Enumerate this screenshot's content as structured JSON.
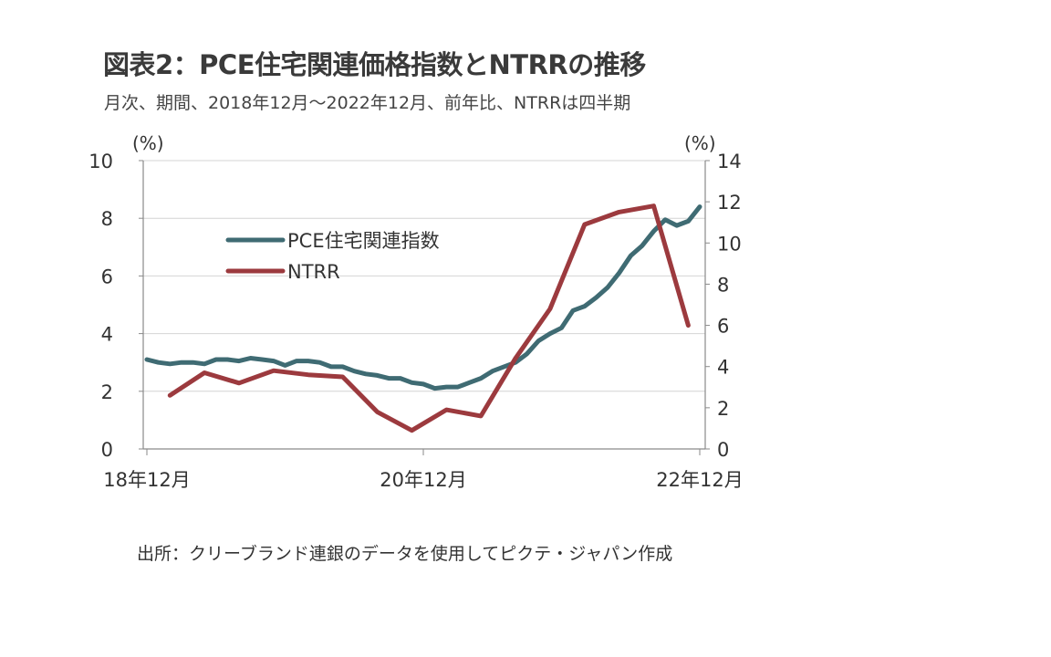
{
  "title": "図表2：PCE住宅関連価格指数とNTRRの推移",
  "subtitle": "月次、期間、2018年12月～2022年12月、前年比、NTRRは四半期",
  "source": "出所：クリーブランド連銀のデータを使用してピクテ・ジャパン作成",
  "chart_data": {
    "type": "line",
    "left_axis": {
      "unit": "(%)",
      "ylim": [
        0,
        10
      ],
      "ticks": [
        "0",
        "2",
        "4",
        "6",
        "8",
        "10"
      ]
    },
    "right_axis": {
      "unit": "(%)",
      "ylim": [
        0,
        14
      ],
      "ticks": [
        "0",
        "2",
        "4",
        "6",
        "8",
        "10",
        "12",
        "14"
      ]
    },
    "x_tick_labels": [
      "18年12月",
      "20年12月",
      "22年12月"
    ],
    "grid": "horizontal",
    "legend_position": "upper-left inside plot",
    "series": [
      {
        "name": "PCE住宅関連指数",
        "axis": "left",
        "color": "#3f6b73",
        "x": [
          "2018-12",
          "2019-01",
          "2019-02",
          "2019-03",
          "2019-04",
          "2019-05",
          "2019-06",
          "2019-07",
          "2019-08",
          "2019-09",
          "2019-10",
          "2019-11",
          "2019-12",
          "2020-01",
          "2020-02",
          "2020-03",
          "2020-04",
          "2020-05",
          "2020-06",
          "2020-07",
          "2020-08",
          "2020-09",
          "2020-10",
          "2020-11",
          "2020-12",
          "2021-01",
          "2021-02",
          "2021-03",
          "2021-04",
          "2021-05",
          "2021-06",
          "2021-07",
          "2021-08",
          "2021-09",
          "2021-10",
          "2021-11",
          "2021-12",
          "2022-01",
          "2022-02",
          "2022-03",
          "2022-04",
          "2022-05",
          "2022-06",
          "2022-07",
          "2022-08",
          "2022-09",
          "2022-10",
          "2022-11",
          "2022-12"
        ],
        "values": [
          3.1,
          3.0,
          2.95,
          3.0,
          3.0,
          2.95,
          3.1,
          3.1,
          3.05,
          3.15,
          3.1,
          3.05,
          2.9,
          3.05,
          3.05,
          3.0,
          2.85,
          2.85,
          2.7,
          2.6,
          2.55,
          2.45,
          2.45,
          2.3,
          2.25,
          2.1,
          2.15,
          2.15,
          2.3,
          2.45,
          2.7,
          2.85,
          3.0,
          3.3,
          3.75,
          4.0,
          4.2,
          4.8,
          4.95,
          5.25,
          5.6,
          6.1,
          6.7,
          7.05,
          7.55,
          7.95,
          7.75,
          7.9,
          8.4
        ]
      },
      {
        "name": "NTRR",
        "axis": "right",
        "color": "#9c3a3e",
        "x": [
          "2019-Q1",
          "2019-Q2",
          "2019-Q3",
          "2019-Q4",
          "2020-Q1",
          "2020-Q2",
          "2020-Q3",
          "2020-Q4",
          "2021-Q1",
          "2021-Q2",
          "2021-Q3",
          "2021-Q4",
          "2022-Q1",
          "2022-Q2",
          "2022-Q3",
          "2022-Q4"
        ],
        "values": [
          2.6,
          3.7,
          3.2,
          3.8,
          3.6,
          3.5,
          1.8,
          0.9,
          1.9,
          1.6,
          4.4,
          6.8,
          10.9,
          11.5,
          11.8,
          6.0
        ]
      }
    ]
  }
}
